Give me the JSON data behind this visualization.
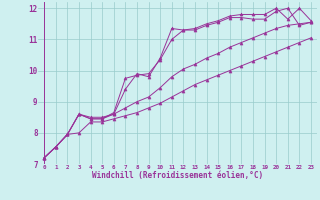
{
  "xlabel": "Windchill (Refroidissement éolien,°C)",
  "bg_color": "#cff0f0",
  "grid_color": "#99cccc",
  "line_color": "#993399",
  "marker_color": "#993399",
  "xlim": [
    -0.5,
    23.5
  ],
  "ylim": [
    7,
    12.2
  ],
  "xticks": [
    0,
    1,
    2,
    3,
    4,
    5,
    6,
    7,
    8,
    9,
    10,
    11,
    12,
    13,
    14,
    15,
    16,
    17,
    18,
    19,
    20,
    21,
    22,
    23
  ],
  "yticks": [
    7,
    8,
    9,
    10,
    11,
    12
  ],
  "series": [
    [
      7.2,
      7.55,
      7.95,
      8.6,
      8.45,
      8.45,
      8.65,
      9.75,
      9.85,
      9.9,
      10.35,
      11.0,
      11.3,
      11.3,
      11.45,
      11.55,
      11.7,
      11.7,
      11.65,
      11.65,
      11.9,
      12.0,
      11.45,
      11.55
    ],
    [
      7.2,
      7.55,
      7.95,
      8.0,
      8.35,
      8.35,
      8.45,
      8.55,
      8.65,
      8.8,
      8.95,
      9.15,
      9.35,
      9.55,
      9.7,
      9.85,
      10.0,
      10.15,
      10.3,
      10.45,
      10.6,
      10.75,
      10.9,
      11.05
    ],
    [
      7.2,
      7.55,
      7.95,
      8.6,
      8.45,
      8.45,
      8.6,
      9.4,
      9.9,
      9.8,
      10.4,
      11.35,
      11.3,
      11.35,
      11.5,
      11.6,
      11.75,
      11.8,
      11.8,
      11.8,
      12.0,
      11.65,
      12.0,
      11.6
    ],
    [
      7.2,
      7.55,
      7.95,
      8.6,
      8.5,
      8.5,
      8.6,
      8.8,
      9.0,
      9.15,
      9.45,
      9.8,
      10.05,
      10.2,
      10.4,
      10.55,
      10.75,
      10.9,
      11.05,
      11.2,
      11.35,
      11.45,
      11.5,
      11.55
    ]
  ]
}
